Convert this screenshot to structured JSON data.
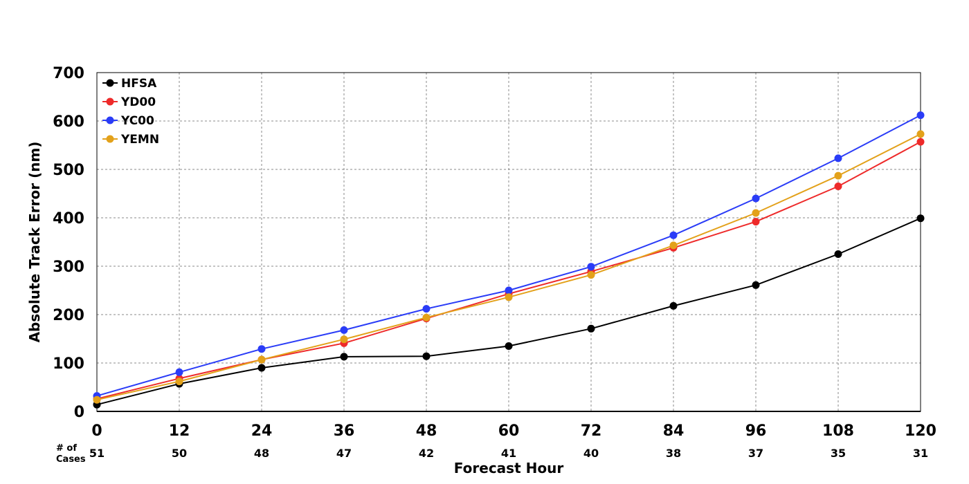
{
  "chart_data": {
    "type": "line",
    "title": "",
    "xlabel": "Forecast Hour",
    "ylabel": "Absolute Track Error (nm)",
    "x": [
      0,
      12,
      24,
      36,
      48,
      60,
      72,
      84,
      96,
      108,
      120
    ],
    "xlim": [
      0,
      120
    ],
    "ylim": [
      0,
      700
    ],
    "yticks": [
      0,
      100,
      200,
      300,
      400,
      500,
      600,
      700
    ],
    "grid": true,
    "legend_position": "top-left",
    "cases_label": [
      "# of",
      "Cases"
    ],
    "cases": [
      51,
      50,
      48,
      47,
      42,
      41,
      40,
      38,
      37,
      35,
      31
    ],
    "series": [
      {
        "name": "HFSA",
        "color": "#000000",
        "values": [
          14,
          57,
          90,
          113,
          114,
          135,
          171,
          218,
          261,
          325,
          399
        ]
      },
      {
        "name": "YD00",
        "color": "#ee2a2a",
        "values": [
          26,
          68,
          107,
          141,
          192,
          243,
          289,
          338,
          392,
          465,
          557
        ]
      },
      {
        "name": "YC00",
        "color": "#2a3cf7",
        "values": [
          32,
          81,
          129,
          168,
          212,
          250,
          299,
          364,
          440,
          523,
          612
        ]
      },
      {
        "name": "YEMN",
        "color": "#e3a11a",
        "values": [
          24,
          62,
          107,
          149,
          194,
          236,
          282,
          343,
          410,
          487,
          573
        ]
      }
    ]
  }
}
